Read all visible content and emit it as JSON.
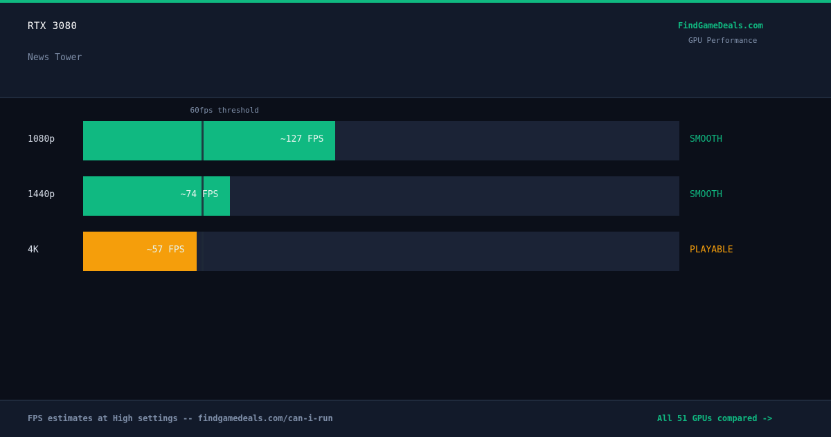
{
  "header": {
    "gpu": "RTX 3080",
    "game": "News Tower",
    "brand": "FindGameDeals.com",
    "brand_sub": "GPU Performance"
  },
  "chart_data": {
    "type": "bar",
    "orientation": "horizontal",
    "categories": [
      "1080p",
      "1440p",
      "4K"
    ],
    "values": [
      127,
      74,
      57
    ],
    "value_labels": [
      "~127 FPS",
      "~74 FPS",
      "~57 FPS"
    ],
    "status": [
      "SMOOTH",
      "SMOOTH",
      "PLAYABLE"
    ],
    "bar_colors": [
      "#10b981",
      "#10b981",
      "#f59e0b"
    ],
    "status_colors": [
      "#10b981",
      "#10b981",
      "#f59e0b"
    ],
    "xlim": [
      0,
      300
    ],
    "threshold": {
      "value": 60,
      "label": "60fps threshold"
    },
    "grid": false
  },
  "footer": {
    "note": "FPS estimates at High settings -- findgamedeals.com/can-i-run",
    "link": "All 51 GPUs compared ->"
  }
}
